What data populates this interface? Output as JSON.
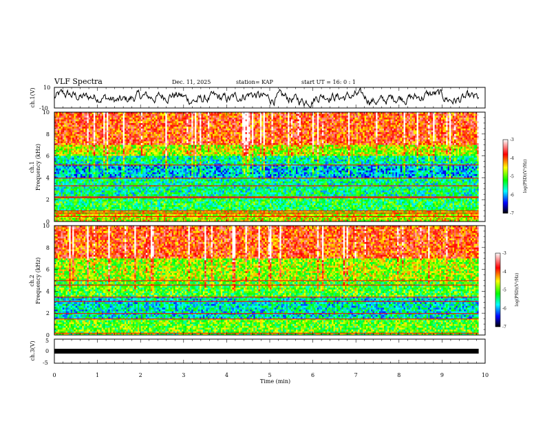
{
  "header": {
    "title": "VLF Spectra",
    "date": "Dec. 11, 2025",
    "station": "station= KAP",
    "start": "start  UT =   16: 0  : 1"
  },
  "colorbar": {
    "label": "log(PSD)(V²/Hz)",
    "ticks": [
      "-3",
      "-4",
      "-5",
      "-6",
      "-7"
    ],
    "colors": [
      "#ffffff",
      "#ff0000",
      "#ffff00",
      "#00ff00",
      "#00ffff",
      "#0000ff",
      "#000000"
    ]
  },
  "chart_data": [
    {
      "type": "line",
      "name": "ch1-waveform",
      "ylabel": "ch.1(V)",
      "ylim": [
        -10,
        10
      ],
      "yticks": [
        "10",
        "-10"
      ],
      "xlim": [
        0,
        10
      ],
      "description_values": {
        "x": [
          0,
          1,
          2,
          3,
          4,
          5,
          6,
          7,
          8,
          9,
          9.85
        ],
        "y": [
          1,
          2,
          0,
          1,
          2,
          1,
          2,
          0,
          1,
          2,
          1
        ]
      }
    },
    {
      "type": "heatmap",
      "name": "ch1-spectrogram",
      "ylabel_1": "ch.1",
      "ylabel_2": "Frequency (kHz)",
      "ylim": [
        0,
        10
      ],
      "yticks": [
        "0",
        "2",
        "4",
        "6",
        "8",
        "10"
      ],
      "xlim": [
        0,
        9.85
      ],
      "clim": [
        -7,
        -3
      ],
      "bands_khz": [
        {
          "range": [
            7,
            10
          ],
          "level": -3.9
        },
        {
          "range": [
            6,
            7
          ],
          "level": -4.7
        },
        {
          "range": [
            5.2,
            6
          ],
          "level": -5.6
        },
        {
          "range": [
            4,
            5.2
          ],
          "level": -5.9
        },
        {
          "range": [
            2.2,
            4
          ],
          "level": -5.5
        },
        {
          "range": [
            1,
            2.2
          ],
          "level": -5.3
        },
        {
          "range": [
            0,
            1
          ],
          "level": -4.6
        }
      ],
      "lines_khz": [
        5.2,
        4.0,
        3.3,
        2.3,
        2.2,
        1.0,
        0.8,
        0.5
      ]
    },
    {
      "type": "heatmap",
      "name": "ch2-spectrogram",
      "ylabel_1": "ch.2",
      "ylabel_2": "Frequency (kHz)",
      "ylim": [
        0,
        10
      ],
      "yticks": [
        "0",
        "2",
        "4",
        "6",
        "8",
        "10"
      ],
      "xlim": [
        0,
        9.85
      ],
      "clim": [
        -7,
        -3
      ],
      "bands_khz": [
        {
          "range": [
            7,
            10
          ],
          "level": -3.9
        },
        {
          "range": [
            5,
            7
          ],
          "level": -4.8
        },
        {
          "range": [
            3.5,
            5
          ],
          "level": -5.1
        },
        {
          "range": [
            1.5,
            3.5
          ],
          "level": -5.7
        },
        {
          "range": [
            0,
            1.5
          ],
          "level": -5.0
        }
      ],
      "lines_khz": [
        5.0,
        4.6,
        3.5,
        3.1,
        2.0,
        1.5,
        0.2
      ]
    },
    {
      "type": "line",
      "name": "ch3-waveform",
      "ylabel": "ch.3(V)",
      "ylim": [
        -5,
        5
      ],
      "yticks": [
        "5",
        "0",
        "-5"
      ],
      "xlim": [
        0,
        10
      ],
      "xlabel": "Time  (min)",
      "xticks": [
        "0",
        "1",
        "2",
        "3",
        "4",
        "5",
        "6",
        "7",
        "8",
        "9",
        "10"
      ],
      "x": [
        0,
        9.85
      ],
      "y": [
        0,
        0
      ]
    }
  ]
}
